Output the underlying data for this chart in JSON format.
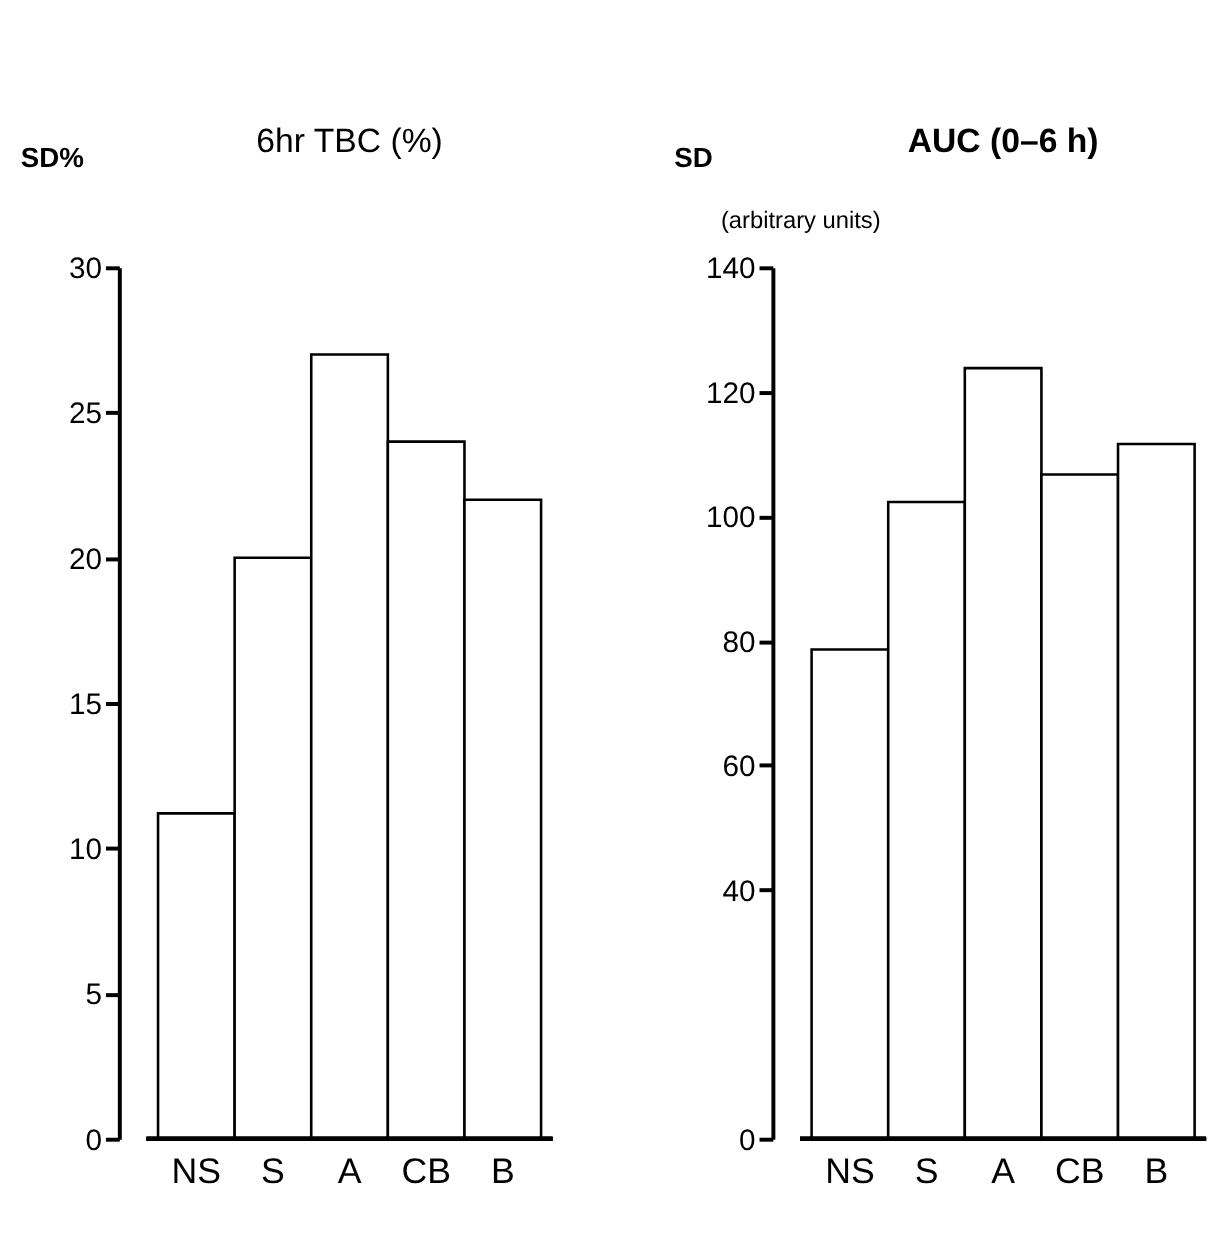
{
  "chart_data": [
    {
      "type": "bar",
      "title": "6hr TBC (%)",
      "ylabel": "SD%",
      "categories": [
        "NS",
        "S",
        "A",
        "CB",
        "B"
      ],
      "values": [
        11.2,
        20,
        27,
        24,
        22
      ],
      "color": "#ffffff",
      "ylim": [
        0,
        30
      ],
      "yticks": [
        0,
        5,
        10,
        15,
        20,
        25,
        30
      ],
      "grid": false
    },
    {
      "type": "bar",
      "title": "AUC (0–6 h)",
      "ylabel": "SD",
      "annotations": [
        "(arbitrary units)"
      ],
      "categories": [
        "NS",
        "S",
        "A",
        "CB",
        "B"
      ],
      "values": [
        78.6,
        102.3,
        123.8,
        106.7,
        111.6
      ],
      "color": "#ffffff",
      "ylim": [
        0,
        140
      ],
      "yticks": [
        0,
        40,
        60,
        80,
        100,
        120,
        140
      ],
      "grid": false
    }
  ]
}
